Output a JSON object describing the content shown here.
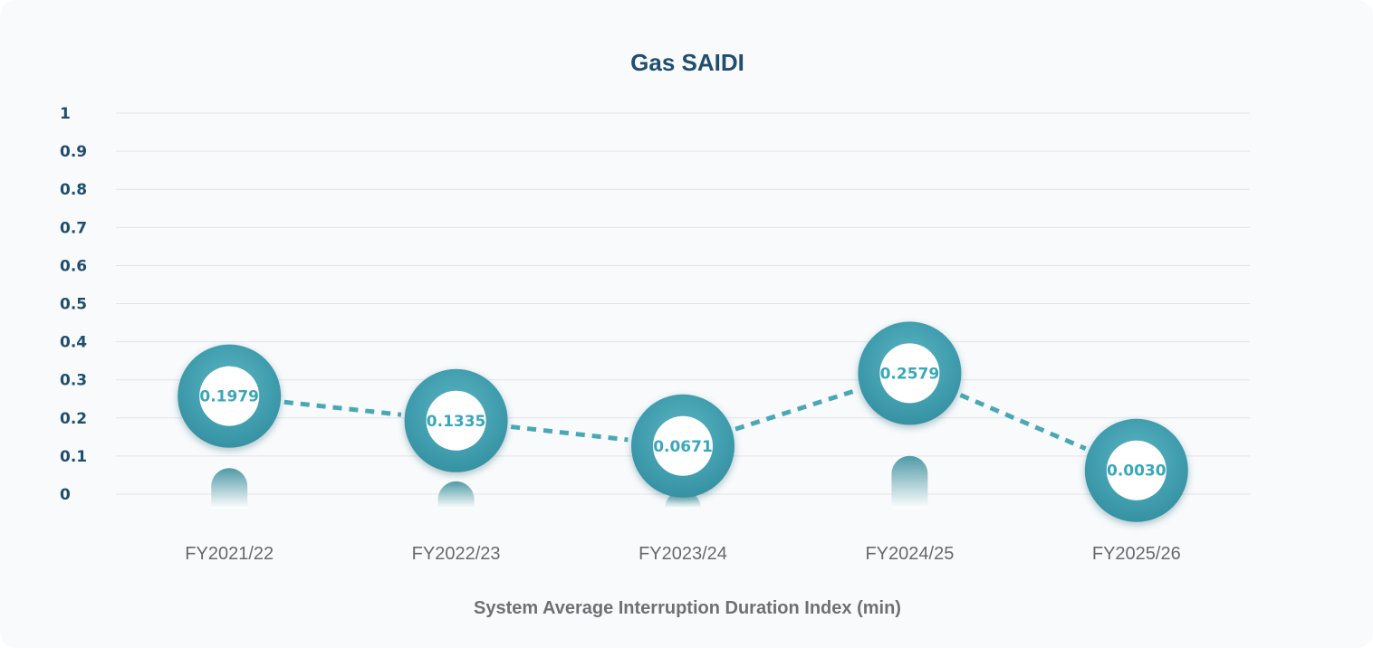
{
  "chart_data": {
    "type": "line",
    "title": "Gas SAIDI",
    "xlabel": "System Average Interruption Duration Index (min)",
    "ylabel": "",
    "categories": [
      "FY2021/22",
      "FY2022/23",
      "FY2023/24",
      "FY2024/25",
      "FY2025/26"
    ],
    "series": [
      {
        "values": [
          0.1979,
          0.1335,
          0.0671,
          0.2579,
          0.003
        ]
      }
    ],
    "data_labels": [
      "0.1979",
      "0.1335",
      "0.0671",
      "0.2579",
      "0.0030"
    ],
    "y_ticks": [
      "0",
      "0.1",
      "0.2",
      "0.3",
      "0.4",
      "0.5",
      "0.6",
      "0.7",
      "0.8",
      "0.9",
      "1"
    ],
    "ylim": [
      0,
      1
    ],
    "grid": true,
    "legend": "none",
    "colors": {
      "ring": "#3f9fae",
      "ring_light": "#5bb7c6",
      "line": "#4aa8b6",
      "label": "#3aa7ba",
      "axis_text": "#1f4e6e",
      "grid": "#e1e4e8"
    }
  }
}
